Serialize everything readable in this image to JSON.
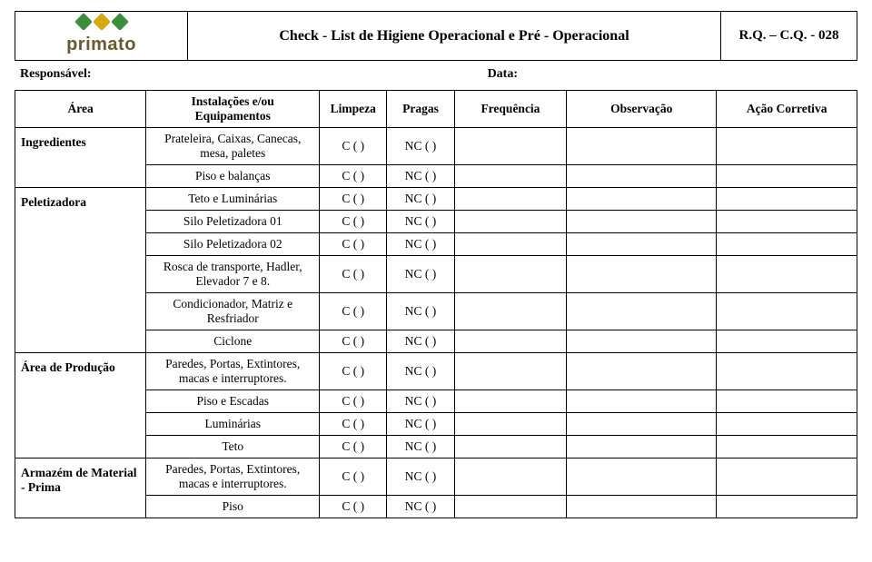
{
  "brand": "primato",
  "header_title": "Check - List de Higiene Operacional e Pré - Operacional",
  "header_code": "R.Q. – C.Q. - 028",
  "meta": {
    "responsavel_label": "Responsável:",
    "data_label": "Data:"
  },
  "columns": {
    "area": "Área",
    "inst": "Instalações e/ou Equipamentos",
    "limpeza": "Limpeza",
    "pragas": "Pragas",
    "freq": "Frequência",
    "obs": "Observação",
    "acao": "Ação Corretiva"
  },
  "mark": {
    "c": "C ( )",
    "nc": "NC ( )"
  },
  "groups": [
    {
      "area": "Ingredientes",
      "rows": [
        {
          "inst": "Prateleira, Caixas, Canecas, mesa, paletes",
          "split_freq": false
        },
        {
          "inst": "Piso e balanças",
          "split_freq": true
        }
      ]
    },
    {
      "area": "Peletizadora",
      "rows": [
        {
          "inst": "Teto e Luminárias"
        },
        {
          "inst": "Silo Peletizadora 01"
        },
        {
          "inst": "Silo Peletizadora 02"
        },
        {
          "inst": "Rosca de transporte, Hadler, Elevador 7 e 8."
        },
        {
          "inst": "Condicionador, Matriz e Resfriador"
        },
        {
          "inst": "Ciclone"
        }
      ]
    },
    {
      "area": "Área de Produção",
      "rows": [
        {
          "inst": "Paredes, Portas, Extintores, macas e  interruptores."
        },
        {
          "inst": "Piso e Escadas"
        },
        {
          "inst": "Luminárias"
        },
        {
          "inst": "Teto"
        }
      ]
    },
    {
      "area": "Armazém de Material - Prima",
      "rows": [
        {
          "inst": "Paredes, Portas, Extintores, macas e  interruptores."
        },
        {
          "inst": "Piso"
        }
      ]
    }
  ]
}
